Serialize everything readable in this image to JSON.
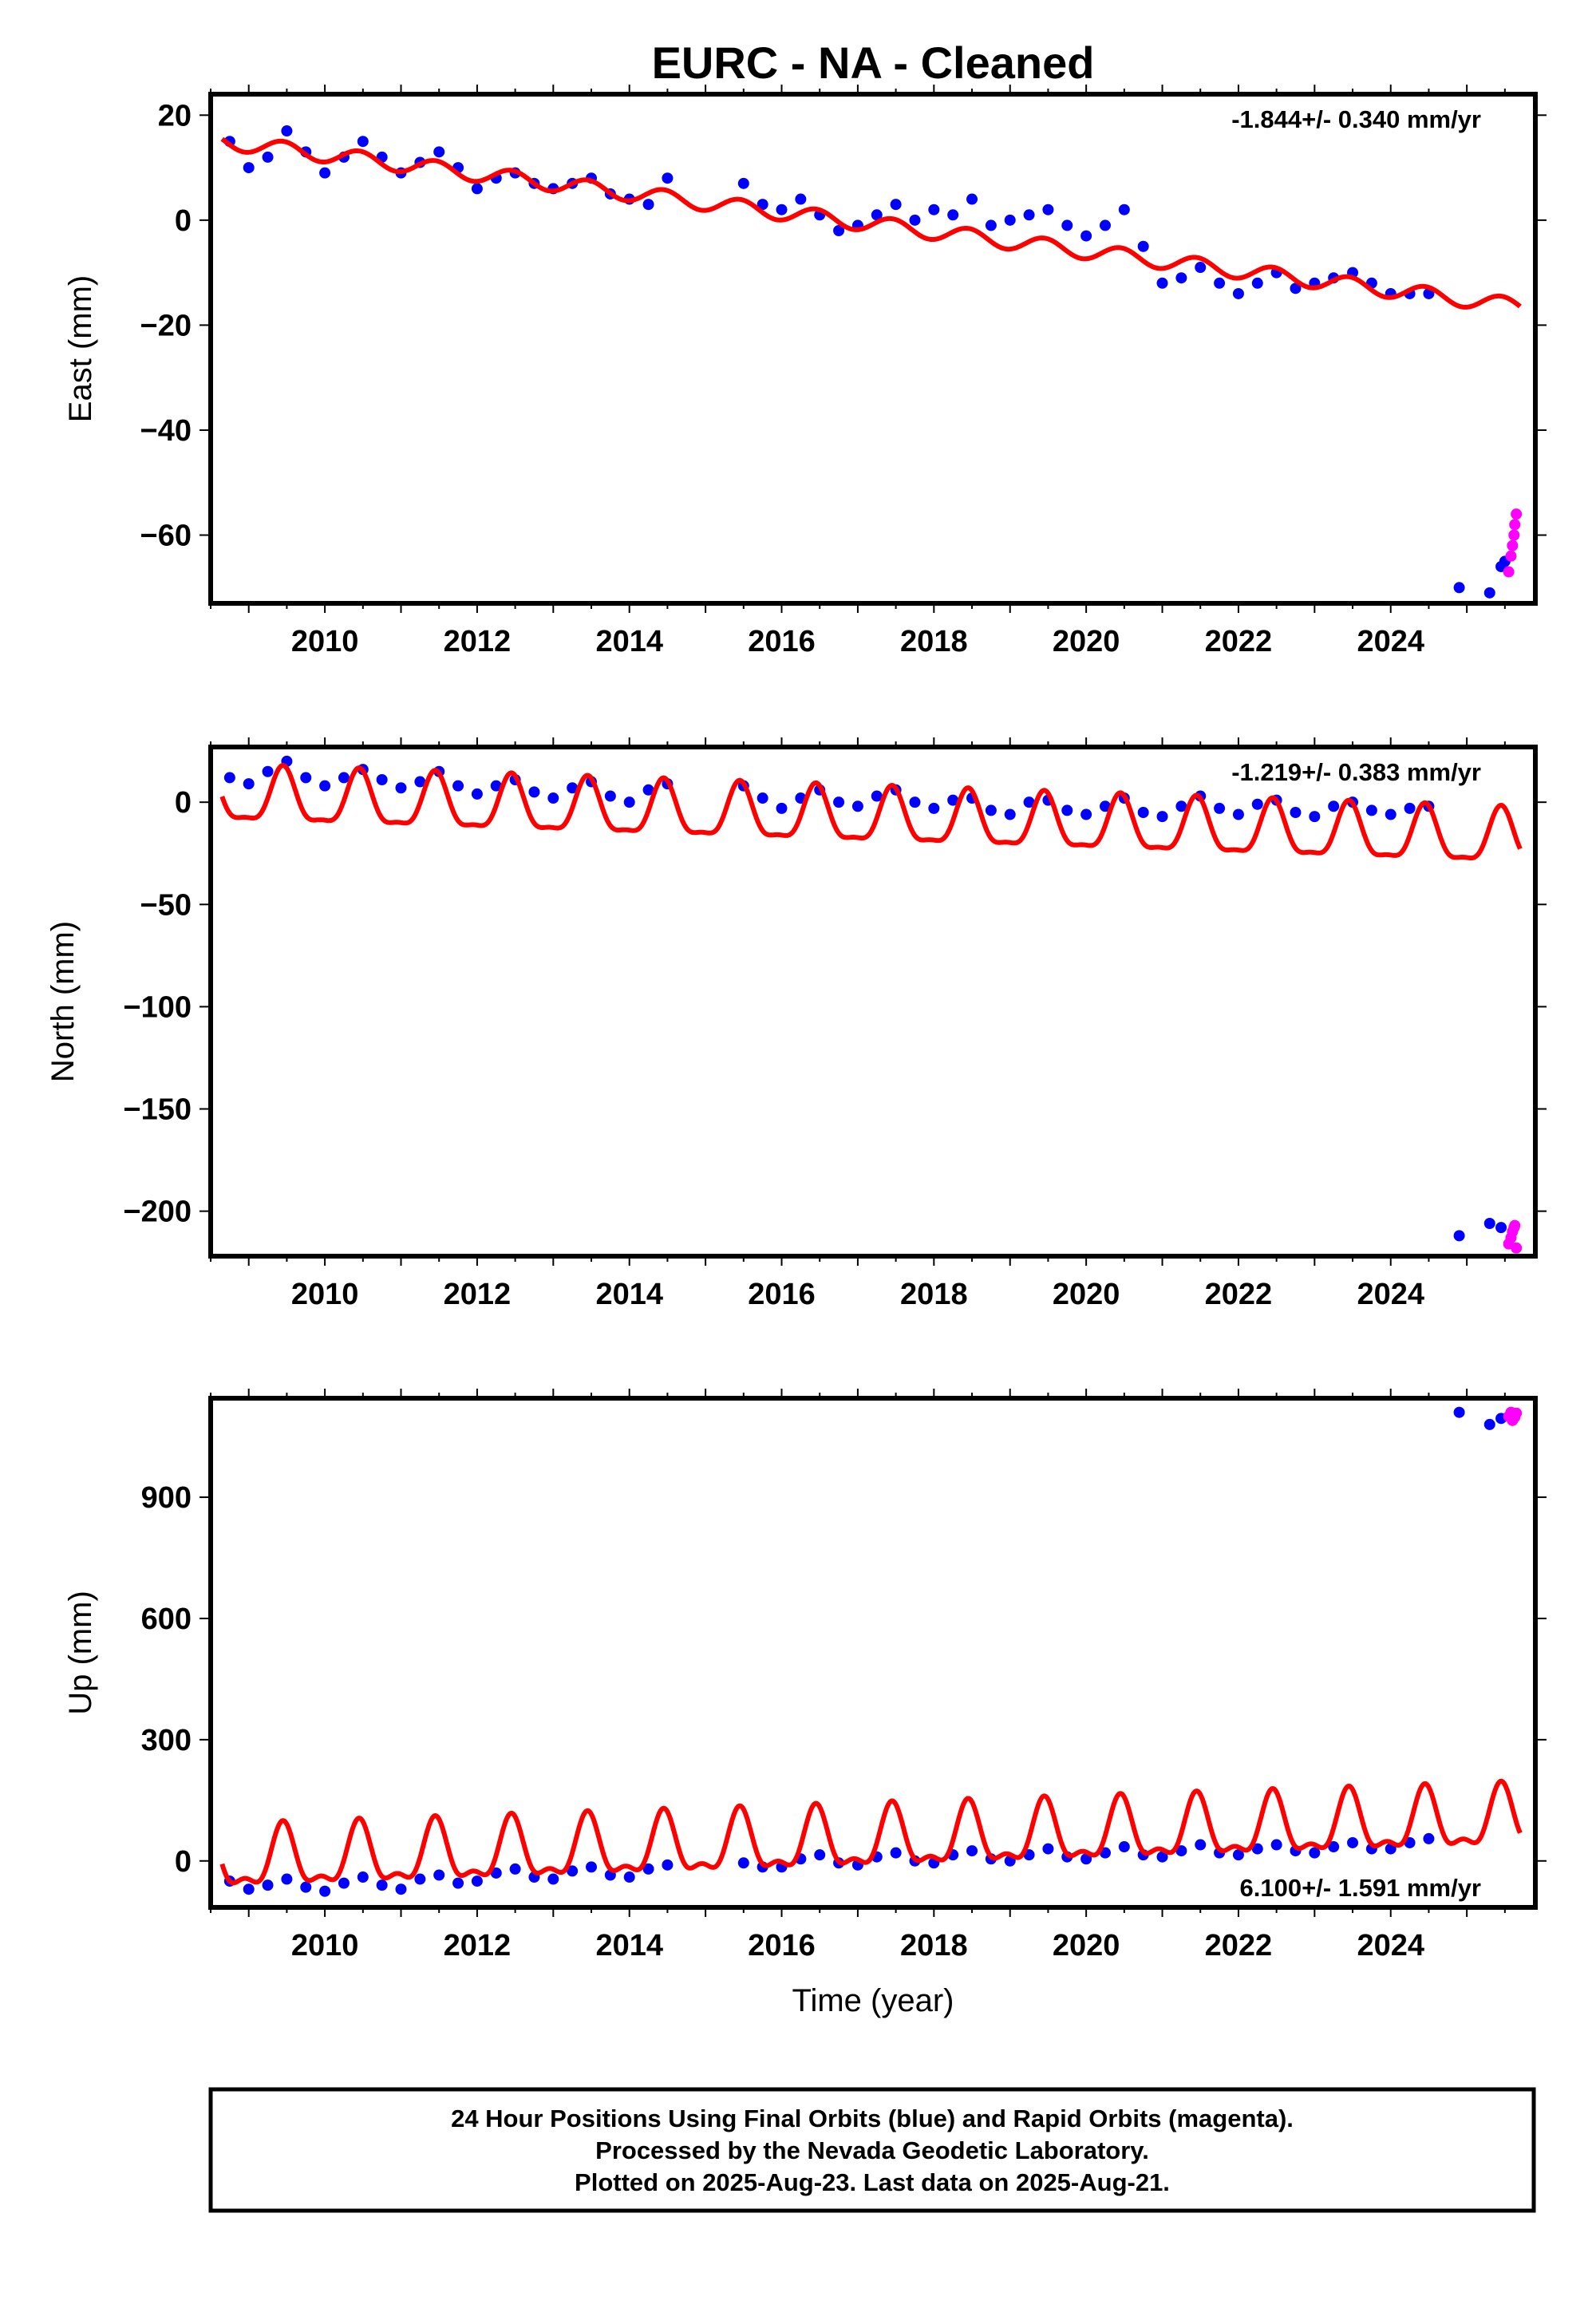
{
  "title": "EURC  - NA - Cleaned",
  "colors": {
    "final_orbits": "#0000ff",
    "rapid_orbits": "#ff00ff",
    "model": "#ff0000",
    "frame": "#000000"
  },
  "footer": {
    "line1": "24 Hour Positions Using Final Orbits (blue) and Rapid Orbits (magenta).",
    "line2": "Processed by the Nevada Geodetic Laboratory.",
    "line3": "Plotted on 2025-Aug-23. Last data on 2025-Aug-21."
  },
  "chart_data": [
    {
      "type": "scatter",
      "panel": "east",
      "ylabel": "East (mm)",
      "xlabel": "",
      "xlim": [
        2008.5,
        2025.9
      ],
      "ylim": [
        -73,
        24
      ],
      "xticks": [
        2010,
        2012,
        2014,
        2016,
        2018,
        2020,
        2022,
        2024
      ],
      "yticks": [
        20,
        0,
        -20,
        -40,
        -60
      ],
      "rate_text": "-1.844+/- 0.340 mm/yr",
      "rate_position": "top-right",
      "series": [
        {
          "name": "Final Orbits (blue)",
          "color": "#0000ff",
          "x": [
            2008.75,
            2009.0,
            2009.25,
            2009.5,
            2009.75,
            2010.0,
            2010.25,
            2010.5,
            2010.75,
            2011.0,
            2011.25,
            2011.5,
            2011.75,
            2012.0,
            2012.25,
            2012.5,
            2012.75,
            2013.0,
            2013.25,
            2013.5,
            2013.75,
            2014.0,
            2014.25,
            2014.5,
            2015.5,
            2015.75,
            2016.0,
            2016.25,
            2016.5,
            2016.75,
            2017.0,
            2017.25,
            2017.5,
            2017.75,
            2018.0,
            2018.25,
            2018.5,
            2018.75,
            2019.0,
            2019.25,
            2019.5,
            2019.75,
            2020.0,
            2020.25,
            2020.5,
            2020.75,
            2021.0,
            2021.25,
            2021.5,
            2021.75,
            2022.0,
            2022.25,
            2022.5,
            2022.75,
            2023.0,
            2023.25,
            2023.5,
            2023.75,
            2024.0,
            2024.25,
            2024.5,
            2024.9,
            2025.3,
            2025.45,
            2025.5
          ],
          "y": [
            15,
            10,
            12,
            17,
            13,
            9,
            12,
            15,
            12,
            9,
            11,
            13,
            10,
            6,
            8,
            9,
            7,
            6,
            7,
            8,
            5,
            4,
            3,
            8,
            7,
            3,
            2,
            4,
            1,
            -2,
            -1,
            1,
            3,
            0,
            2,
            1,
            4,
            -1,
            0,
            1,
            2,
            -1,
            -3,
            -1,
            2,
            -5,
            -12,
            -11,
            -9,
            -12,
            -14,
            -12,
            -10,
            -13,
            -12,
            -11,
            -10,
            -12,
            -14,
            -14,
            -14,
            -70,
            -71,
            -66,
            -65
          ]
        },
        {
          "name": "Rapid Orbits (magenta)",
          "color": "#ff00ff",
          "x": [
            2025.55,
            2025.58,
            2025.6,
            2025.62,
            2025.63,
            2025.65
          ],
          "y": [
            -67,
            -64,
            -62,
            -60,
            -58,
            -56
          ]
        },
        {
          "name": "Model",
          "color": "#ff0000",
          "type": "line",
          "trend": {
            "intercept": 15,
            "slope": -1.844,
            "x0": 2008.65
          },
          "annual_amplitude": 1.5,
          "x_range": [
            2008.65,
            2025.7
          ]
        }
      ]
    },
    {
      "type": "scatter",
      "panel": "north",
      "ylabel": "North (mm)",
      "xlabel": "",
      "xlim": [
        2008.5,
        2025.9
      ],
      "ylim": [
        -222,
        27
      ],
      "xticks": [
        2010,
        2012,
        2014,
        2016,
        2018,
        2020,
        2022,
        2024
      ],
      "yticks": [
        0,
        -50,
        -100,
        -150,
        -200
      ],
      "rate_text": "-1.219+/- 0.383 mm/yr",
      "rate_position": "top-right",
      "series": [
        {
          "name": "Final Orbits (blue)",
          "color": "#0000ff",
          "x": [
            2008.75,
            2009.0,
            2009.25,
            2009.5,
            2009.75,
            2010.0,
            2010.25,
            2010.5,
            2010.75,
            2011.0,
            2011.25,
            2011.5,
            2011.75,
            2012.0,
            2012.25,
            2012.5,
            2012.75,
            2013.0,
            2013.25,
            2013.5,
            2013.75,
            2014.0,
            2014.25,
            2014.5,
            2015.5,
            2015.75,
            2016.0,
            2016.25,
            2016.5,
            2016.75,
            2017.0,
            2017.25,
            2017.5,
            2017.75,
            2018.0,
            2018.25,
            2018.5,
            2018.75,
            2019.0,
            2019.25,
            2019.5,
            2019.75,
            2020.0,
            2020.25,
            2020.5,
            2020.75,
            2021.0,
            2021.25,
            2021.5,
            2021.75,
            2022.0,
            2022.25,
            2022.5,
            2022.75,
            2023.0,
            2023.25,
            2023.5,
            2023.75,
            2024.0,
            2024.25,
            2024.5,
            2024.9,
            2025.3,
            2025.45
          ],
          "y": [
            12,
            9,
            15,
            20,
            12,
            8,
            12,
            16,
            11,
            7,
            10,
            15,
            8,
            4,
            8,
            11,
            5,
            2,
            7,
            10,
            3,
            0,
            6,
            9,
            8,
            2,
            -3,
            2,
            6,
            0,
            -2,
            3,
            6,
            0,
            -3,
            1,
            2,
            -4,
            -6,
            0,
            1,
            -4,
            -6,
            -2,
            2,
            -5,
            -7,
            -2,
            3,
            -3,
            -6,
            -1,
            1,
            -5,
            -7,
            -2,
            0,
            -4,
            -6,
            -3,
            -2,
            -212,
            -206,
            -208
          ]
        },
        {
          "name": "Rapid Orbits (magenta)",
          "color": "#ff00ff",
          "x": [
            2025.55,
            2025.58,
            2025.6,
            2025.62,
            2025.63,
            2025.65
          ],
          "y": [
            -216,
            -213,
            -210,
            -208,
            -207,
            -218
          ]
        },
        {
          "name": "Model",
          "color": "#ff0000",
          "type": "line",
          "trend": {
            "intercept": 2,
            "slope": -1.219,
            "x0": 2008.65
          },
          "annual_amplitude": 13,
          "semiannual_amplitude": 4,
          "x_range": [
            2008.65,
            2025.7
          ]
        }
      ]
    },
    {
      "type": "scatter",
      "panel": "up",
      "ylabel": "Up (mm)",
      "xlabel": "Time (year)",
      "xlim": [
        2008.5,
        2025.9
      ],
      "ylim": [
        -115,
        1145
      ],
      "xticks": [
        2010,
        2012,
        2014,
        2016,
        2018,
        2020,
        2022,
        2024
      ],
      "yticks": [
        900,
        600,
        300,
        0
      ],
      "rate_text": "6.100+/- 1.591 mm/yr",
      "rate_position": "bottom-right",
      "series": [
        {
          "name": "Final Orbits (blue)",
          "color": "#0000ff",
          "x": [
            2008.75,
            2009.0,
            2009.25,
            2009.5,
            2009.75,
            2010.0,
            2010.25,
            2010.5,
            2010.75,
            2011.0,
            2011.25,
            2011.5,
            2011.75,
            2012.0,
            2012.25,
            2012.5,
            2012.75,
            2013.0,
            2013.25,
            2013.5,
            2013.75,
            2014.0,
            2014.25,
            2014.5,
            2015.5,
            2015.75,
            2016.0,
            2016.25,
            2016.5,
            2016.75,
            2017.0,
            2017.25,
            2017.5,
            2017.75,
            2018.0,
            2018.25,
            2018.5,
            2018.75,
            2019.0,
            2019.25,
            2019.5,
            2019.75,
            2020.0,
            2020.25,
            2020.5,
            2020.75,
            2021.0,
            2021.25,
            2021.5,
            2021.75,
            2022.0,
            2022.25,
            2022.5,
            2022.75,
            2023.0,
            2023.25,
            2023.5,
            2023.75,
            2024.0,
            2024.25,
            2024.5,
            2024.9,
            2025.3,
            2025.45
          ],
          "y": [
            -50,
            -70,
            -60,
            -45,
            -65,
            -75,
            -55,
            -40,
            -60,
            -70,
            -45,
            -35,
            -55,
            -50,
            -30,
            -20,
            -40,
            -45,
            -25,
            -15,
            -35,
            -40,
            -20,
            -10,
            -5,
            -15,
            -15,
            5,
            15,
            -5,
            -10,
            10,
            20,
            0,
            -5,
            15,
            25,
            5,
            0,
            15,
            30,
            10,
            5,
            20,
            35,
            15,
            10,
            25,
            40,
            20,
            15,
            30,
            40,
            25,
            20,
            35,
            45,
            30,
            30,
            45,
            55,
            1110,
            1080,
            1095
          ]
        },
        {
          "name": "Rapid Orbits (magenta)",
          "color": "#ff00ff",
          "x": [
            2025.55,
            2025.58,
            2025.6,
            2025.62,
            2025.63,
            2025.65
          ],
          "y": [
            1100,
            1110,
            1090,
            1105,
            1098,
            1108
          ]
        },
        {
          "name": "Model",
          "color": "#ff0000",
          "type": "line",
          "trend": {
            "intercept": -5,
            "slope": 6.1,
            "x0": 2008.65
          },
          "annual_amplitude": 70,
          "semiannual_amplitude": 30,
          "x_range": [
            2008.65,
            2025.7
          ]
        }
      ]
    }
  ]
}
